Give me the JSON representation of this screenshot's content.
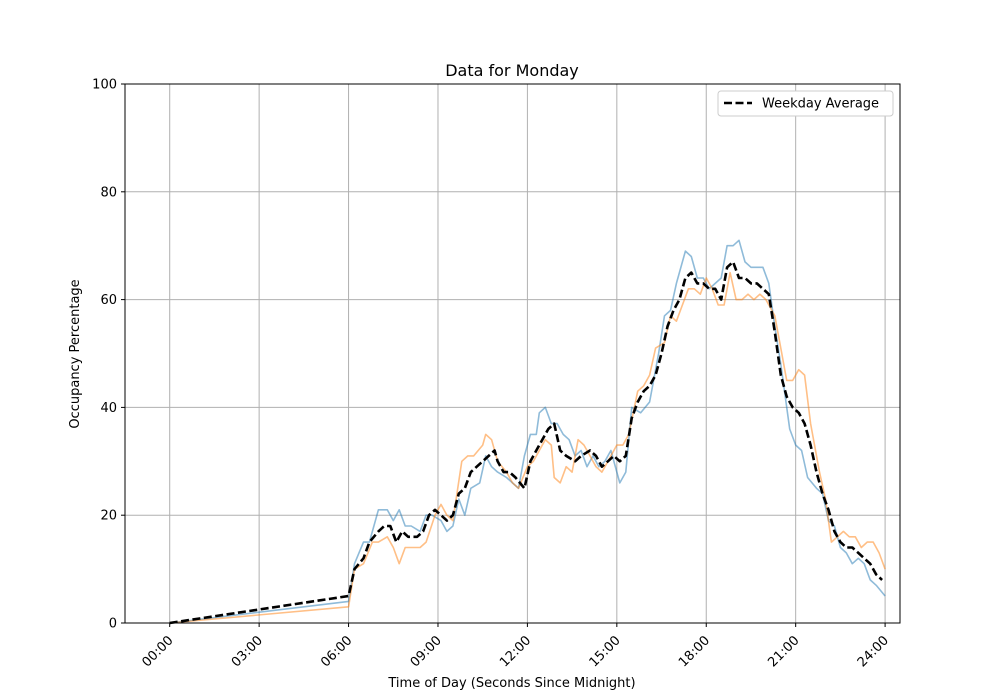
{
  "chart_data": {
    "type": "line",
    "title": "Data for Monday",
    "xlabel": "Time of Day (Seconds Since Midnight)",
    "ylabel": "Occupancy Percentage",
    "xlim": [
      -1.5,
      24.5
    ],
    "ylim": [
      0,
      100
    ],
    "x_ticks": [
      0,
      3,
      6,
      9,
      12,
      15,
      18,
      21,
      24
    ],
    "x_tick_labels": [
      "00:00",
      "03:00",
      "06:00",
      "09:00",
      "12:00",
      "15:00",
      "18:00",
      "21:00",
      "24:00"
    ],
    "y_ticks": [
      0,
      20,
      40,
      60,
      80,
      100
    ],
    "y_tick_labels": [
      "0",
      "20",
      "40",
      "60",
      "80",
      "100"
    ],
    "grid": true,
    "legend": {
      "placement": "top-right",
      "entries": [
        "Weekday Average"
      ]
    },
    "series": [
      {
        "color": "#1f77b4",
        "points": [
          [
            0,
            0
          ],
          [
            6,
            4
          ],
          [
            6.2,
            11
          ],
          [
            6.5,
            15
          ],
          [
            6.7,
            15
          ],
          [
            7,
            21
          ],
          [
            7.3,
            21
          ],
          [
            7.5,
            19
          ],
          [
            7.7,
            21
          ],
          [
            7.9,
            18
          ],
          [
            8.1,
            18
          ],
          [
            8.4,
            17
          ],
          [
            8.6,
            20
          ],
          [
            8.8,
            20
          ],
          [
            9.1,
            19
          ],
          [
            9.3,
            17
          ],
          [
            9.5,
            18
          ],
          [
            9.7,
            23
          ],
          [
            9.9,
            20
          ],
          [
            10.1,
            25
          ],
          [
            10.4,
            26
          ],
          [
            10.6,
            31
          ],
          [
            10.8,
            29
          ],
          [
            11,
            28
          ],
          [
            11.3,
            27
          ],
          [
            11.5,
            26
          ],
          [
            11.7,
            25
          ],
          [
            11.9,
            31
          ],
          [
            12.1,
            35
          ],
          [
            12.3,
            35
          ],
          [
            12.4,
            39
          ],
          [
            12.6,
            40
          ],
          [
            12.8,
            37
          ],
          [
            13,
            37
          ],
          [
            13.2,
            35
          ],
          [
            13.4,
            34
          ],
          [
            13.6,
            31
          ],
          [
            13.8,
            32
          ],
          [
            14,
            29
          ],
          [
            14.2,
            31
          ],
          [
            14.4,
            29
          ],
          [
            14.6,
            30
          ],
          [
            14.8,
            32
          ],
          [
            15.1,
            26
          ],
          [
            15.3,
            28
          ],
          [
            15.5,
            40
          ],
          [
            15.8,
            39
          ],
          [
            16.1,
            41
          ],
          [
            16.4,
            50
          ],
          [
            16.6,
            57
          ],
          [
            16.8,
            58
          ],
          [
            17,
            63
          ],
          [
            17.3,
            69
          ],
          [
            17.5,
            68
          ],
          [
            17.7,
            64
          ],
          [
            17.9,
            64
          ],
          [
            18.1,
            62
          ],
          [
            18.3,
            63
          ],
          [
            18.5,
            64
          ],
          [
            18.7,
            70
          ],
          [
            18.9,
            70
          ],
          [
            19.1,
            71
          ],
          [
            19.3,
            67
          ],
          [
            19.5,
            66
          ],
          [
            19.7,
            66
          ],
          [
            19.9,
            66
          ],
          [
            20.1,
            63
          ],
          [
            20.3,
            55
          ],
          [
            20.5,
            48
          ],
          [
            20.8,
            36
          ],
          [
            21,
            33
          ],
          [
            21.2,
            32
          ],
          [
            21.4,
            27
          ],
          [
            21.7,
            25
          ],
          [
            21.9,
            24
          ],
          [
            22.1,
            19
          ],
          [
            22.3,
            18
          ],
          [
            22.5,
            14
          ],
          [
            22.7,
            13
          ],
          [
            22.9,
            11
          ],
          [
            23.1,
            12
          ],
          [
            23.3,
            11
          ],
          [
            23.5,
            8
          ],
          [
            23.7,
            7
          ],
          [
            24,
            5
          ]
        ]
      },
      {
        "color": "#ff7f0e",
        "points": [
          [
            0,
            0
          ],
          [
            6,
            3
          ],
          [
            6.2,
            10
          ],
          [
            6.5,
            11
          ],
          [
            6.8,
            15
          ],
          [
            7,
            15
          ],
          [
            7.3,
            16
          ],
          [
            7.5,
            14
          ],
          [
            7.7,
            11
          ],
          [
            7.9,
            14
          ],
          [
            8.1,
            14
          ],
          [
            8.4,
            14
          ],
          [
            8.6,
            15
          ],
          [
            8.9,
            20
          ],
          [
            9.1,
            22
          ],
          [
            9.3,
            20
          ],
          [
            9.5,
            19
          ],
          [
            9.8,
            30
          ],
          [
            10,
            31
          ],
          [
            10.2,
            31
          ],
          [
            10.5,
            33
          ],
          [
            10.6,
            35
          ],
          [
            10.8,
            34
          ],
          [
            11,
            30
          ],
          [
            11.3,
            28
          ],
          [
            11.5,
            26
          ],
          [
            11.7,
            25
          ],
          [
            12,
            29
          ],
          [
            12.2,
            30
          ],
          [
            12.4,
            32
          ],
          [
            12.6,
            34
          ],
          [
            12.8,
            33
          ],
          [
            12.9,
            27
          ],
          [
            13.1,
            26
          ],
          [
            13.3,
            29
          ],
          [
            13.5,
            28
          ],
          [
            13.7,
            34
          ],
          [
            13.9,
            33
          ],
          [
            14.1,
            31
          ],
          [
            14.3,
            29
          ],
          [
            14.5,
            28
          ],
          [
            14.7,
            30
          ],
          [
            15,
            33
          ],
          [
            15.2,
            33
          ],
          [
            15.4,
            35
          ],
          [
            15.7,
            43
          ],
          [
            15.9,
            44
          ],
          [
            16.1,
            46
          ],
          [
            16.3,
            51
          ],
          [
            16.6,
            52
          ],
          [
            16.8,
            57
          ],
          [
            17,
            56
          ],
          [
            17.2,
            59
          ],
          [
            17.4,
            62
          ],
          [
            17.6,
            62
          ],
          [
            17.8,
            61
          ],
          [
            18,
            64
          ],
          [
            18.2,
            62
          ],
          [
            18.4,
            59
          ],
          [
            18.6,
            59
          ],
          [
            18.8,
            65
          ],
          [
            19,
            60
          ],
          [
            19.2,
            60
          ],
          [
            19.4,
            61
          ],
          [
            19.6,
            60
          ],
          [
            19.8,
            61
          ],
          [
            20,
            60
          ],
          [
            20.3,
            57
          ],
          [
            20.5,
            51
          ],
          [
            20.7,
            45
          ],
          [
            20.9,
            45
          ],
          [
            21.1,
            47
          ],
          [
            21.3,
            46
          ],
          [
            21.5,
            37
          ],
          [
            21.8,
            28
          ],
          [
            22,
            23
          ],
          [
            22.2,
            15
          ],
          [
            22.4,
            16
          ],
          [
            22.6,
            17
          ],
          [
            22.8,
            16
          ],
          [
            23,
            16
          ],
          [
            23.2,
            14
          ],
          [
            23.4,
            15
          ],
          [
            23.6,
            15
          ],
          [
            23.8,
            13
          ],
          [
            24,
            10
          ]
        ]
      },
      {
        "name": "Weekday Average",
        "color": "#000000",
        "dashed": true,
        "points": [
          [
            0,
            0
          ],
          [
            6,
            5
          ],
          [
            6.2,
            10
          ],
          [
            6.5,
            12
          ],
          [
            6.7,
            15
          ],
          [
            7,
            17
          ],
          [
            7.2,
            18
          ],
          [
            7.4,
            18
          ],
          [
            7.6,
            15
          ],
          [
            7.8,
            17
          ],
          [
            8,
            16
          ],
          [
            8.3,
            16
          ],
          [
            8.5,
            17
          ],
          [
            8.7,
            20
          ],
          [
            8.9,
            21
          ],
          [
            9.1,
            20
          ],
          [
            9.3,
            19
          ],
          [
            9.5,
            20
          ],
          [
            9.7,
            24
          ],
          [
            9.9,
            25
          ],
          [
            10.1,
            28
          ],
          [
            10.3,
            29
          ],
          [
            10.5,
            30
          ],
          [
            10.7,
            31
          ],
          [
            10.9,
            32
          ],
          [
            11,
            30
          ],
          [
            11.2,
            28
          ],
          [
            11.4,
            28
          ],
          [
            11.6,
            27
          ],
          [
            11.9,
            25
          ],
          [
            12.1,
            30
          ],
          [
            12.3,
            32
          ],
          [
            12.5,
            34
          ],
          [
            12.7,
            36
          ],
          [
            12.9,
            37
          ],
          [
            13.1,
            32
          ],
          [
            13.3,
            31
          ],
          [
            13.6,
            30
          ],
          [
            13.8,
            31
          ],
          [
            14.1,
            32
          ],
          [
            14.3,
            31
          ],
          [
            14.5,
            29
          ],
          [
            14.7,
            30
          ],
          [
            14.9,
            31
          ],
          [
            15.1,
            30
          ],
          [
            15.3,
            31
          ],
          [
            15.5,
            38
          ],
          [
            15.7,
            41
          ],
          [
            15.9,
            43
          ],
          [
            16.1,
            44
          ],
          [
            16.3,
            46
          ],
          [
            16.5,
            50
          ],
          [
            16.7,
            55
          ],
          [
            16.9,
            58
          ],
          [
            17.1,
            60
          ],
          [
            17.3,
            64
          ],
          [
            17.5,
            65
          ],
          [
            17.7,
            63
          ],
          [
            17.9,
            63
          ],
          [
            18.1,
            62
          ],
          [
            18.3,
            62
          ],
          [
            18.5,
            60
          ],
          [
            18.7,
            66
          ],
          [
            18.9,
            67
          ],
          [
            19.1,
            64
          ],
          [
            19.3,
            64
          ],
          [
            19.5,
            63
          ],
          [
            19.7,
            63
          ],
          [
            19.9,
            62
          ],
          [
            20.1,
            61
          ],
          [
            20.3,
            54
          ],
          [
            20.5,
            46
          ],
          [
            20.7,
            42
          ],
          [
            20.9,
            40
          ],
          [
            21.1,
            39
          ],
          [
            21.3,
            37
          ],
          [
            21.5,
            33
          ],
          [
            21.7,
            28
          ],
          [
            21.9,
            24
          ],
          [
            22.1,
            21
          ],
          [
            22.3,
            17
          ],
          [
            22.5,
            15
          ],
          [
            22.7,
            14
          ],
          [
            22.9,
            14
          ],
          [
            23.1,
            13
          ],
          [
            23.3,
            12
          ],
          [
            23.5,
            11
          ],
          [
            23.7,
            9
          ],
          [
            23.9,
            8
          ]
        ]
      }
    ]
  }
}
